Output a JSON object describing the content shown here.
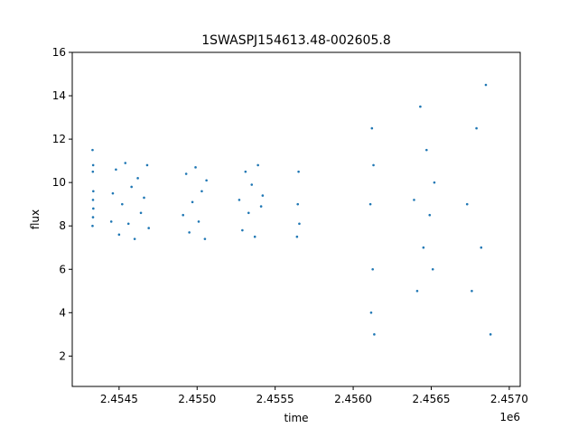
{
  "chart_data": {
    "type": "scatter",
    "title": "1SWASPJ154613.48-002605.8",
    "xlabel": "time",
    "ylabel": "flux",
    "x_offset_label": "1e6",
    "xlim": [
      2454200,
      2457070
    ],
    "ylim": [
      0.6,
      16
    ],
    "x_ticks": [
      2454500,
      2455000,
      2455500,
      2456000,
      2456500,
      2457000
    ],
    "x_tick_labels": [
      "2.4545",
      "2.4550",
      "2.4555",
      "2.4560",
      "2.4565",
      "2.4570"
    ],
    "y_ticks": [
      2,
      4,
      6,
      8,
      10,
      12,
      14,
      16
    ],
    "y_tick_labels": [
      "2",
      "4",
      "6",
      "8",
      "10",
      "12",
      "14",
      "16"
    ],
    "grid": false,
    "marker_color": "#1f77b4",
    "series": [
      {
        "x": [
          2454330,
          2454330,
          2454332,
          2454333,
          2454333,
          2454334,
          2454335,
          2454335,
          2454450,
          2454460,
          2454480,
          2454500,
          2454520,
          2454540,
          2454560,
          2454580,
          2454600,
          2454620,
          2454640,
          2454660,
          2454680,
          2454690,
          2454910,
          2454930,
          2454950,
          2454970,
          2454990,
          2455010,
          2455030,
          2455050,
          2455060,
          2455270,
          2455290,
          2455310,
          2455330,
          2455350,
          2455370,
          2455390,
          2455410,
          2455420,
          2455640,
          2455645,
          2455650,
          2455655,
          2456110,
          2456115,
          2456120,
          2456125,
          2456130,
          2456135,
          2456390,
          2456410,
          2456430,
          2456450,
          2456470,
          2456490,
          2456510,
          2456520,
          2456730,
          2456760,
          2456790,
          2456820,
          2456850,
          2456880
        ],
        "y": [
          11.5,
          8.0,
          10.5,
          9.2,
          8.4,
          10.8,
          9.6,
          8.8,
          8.2,
          9.5,
          10.6,
          7.6,
          9.0,
          10.9,
          8.1,
          9.8,
          7.4,
          10.2,
          8.6,
          9.3,
          10.8,
          7.9,
          8.5,
          10.4,
          7.7,
          9.1,
          10.7,
          8.2,
          9.6,
          7.4,
          10.1,
          9.2,
          7.8,
          10.5,
          8.6,
          9.9,
          7.5,
          10.8,
          8.9,
          9.4,
          7.5,
          9.0,
          10.5,
          8.1,
          9.0,
          4.0,
          12.5,
          6.0,
          10.8,
          3.0,
          9.2,
          5.0,
          13.5,
          7.0,
          11.5,
          8.5,
          6.0,
          10.0,
          9.0,
          5.0,
          12.5,
          7.0,
          14.5,
          3.0
        ]
      }
    ]
  }
}
